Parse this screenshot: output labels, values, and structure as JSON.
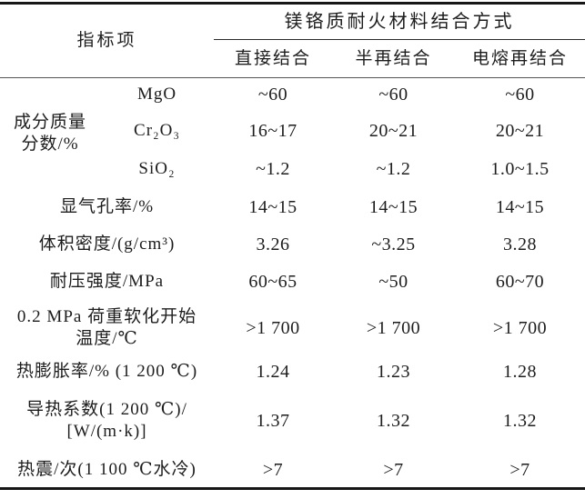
{
  "table": {
    "header": {
      "indicator": "指标项",
      "group_title": "镁铬质耐火材料结合方式",
      "columns": [
        "直接结合",
        "半再结合",
        "电熔再结合"
      ]
    },
    "composition": {
      "group_label_line1": "成分质量",
      "group_label_line2": "分数/%",
      "rows": [
        {
          "component": "MgO",
          "values": [
            "~60",
            "~60",
            "~60"
          ]
        },
        {
          "component": "Cr₂O₃",
          "values": [
            "16~17",
            "20~21",
            "20~21"
          ]
        },
        {
          "component": "SiO₂",
          "values": [
            "~1.2",
            "~1.2",
            "1.0~1.5"
          ]
        }
      ]
    },
    "rows": [
      {
        "label1": "显气孔率/%",
        "label2": "",
        "values": [
          "14~15",
          "14~15",
          "14~15"
        ]
      },
      {
        "label1": "体积密度/(g/cm³)",
        "label2": "",
        "values": [
          "3.26",
          "~3.25",
          "3.28"
        ]
      },
      {
        "label1": "耐压强度/MPa",
        "label2": "",
        "values": [
          "60~65",
          "~50",
          "60~70"
        ]
      },
      {
        "label1": "0.2 MPa 荷重软化开始",
        "label2": "温度/℃",
        "values": [
          ">1 700",
          ">1 700",
          ">1 700"
        ]
      },
      {
        "label1": "热膨胀率/% (1 200 ℃)",
        "label2": "",
        "values": [
          "1.24",
          "1.23",
          "1.28"
        ]
      },
      {
        "label1": "导热系数(1 200 ℃)/",
        "label2": "[W/(m·k)]",
        "values": [
          "1.37",
          "1.32",
          "1.32"
        ]
      },
      {
        "label1": "热震/次(1 100 ℃水冷)",
        "label2": "",
        "values": [
          ">7",
          ">7",
          ">7"
        ]
      }
    ]
  }
}
